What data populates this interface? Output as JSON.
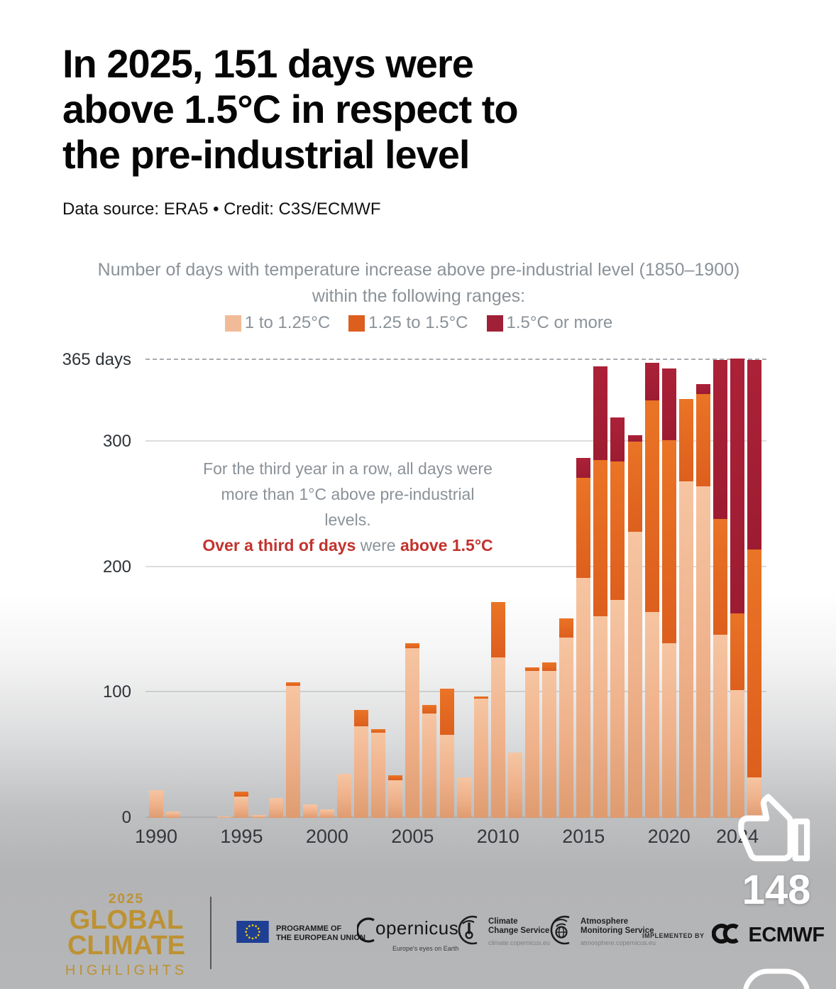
{
  "header": {
    "title_lines": [
      "In 2025, 151 days were",
      "above 1.5°C in respect to",
      "the pre-industrial level"
    ],
    "source": "Data source: ERA5 • Credit: C3S/ECMWF"
  },
  "chart": {
    "subtitle_line1": "Number of days with temperature increase above pre-industrial level (1850–1900)",
    "subtitle_line2": "within the following ranges:",
    "annotation": {
      "line1": "For the third year in a row, all days were",
      "line2": "more than 1°C above pre-industrial",
      "line3": "levels.",
      "line4_red1": "Over a third of days",
      "line4_gray": " were ",
      "line4_red2": "above 1.5°C"
    },
    "y_ticks": [
      {
        "label": "365 days",
        "value": 365
      },
      {
        "label": "300",
        "value": 300
      },
      {
        "label": "200",
        "value": 200
      },
      {
        "label": "100",
        "value": 100
      },
      {
        "label": "0",
        "value": 0
      }
    ],
    "x_ticks": [
      {
        "label": "1990",
        "year": 1990
      },
      {
        "label": "1995",
        "year": 1995
      },
      {
        "label": "2000",
        "year": 2000
      },
      {
        "label": "2005",
        "year": 2005
      },
      {
        "label": "2010",
        "year": 2010
      },
      {
        "label": "2015",
        "year": 2015
      },
      {
        "label": "2020",
        "year": 2020
      },
      {
        "label": "2024",
        "year": 2024
      }
    ]
  },
  "chart_data": {
    "type": "bar",
    "stacked": true,
    "title": "Number of days with temperature increase above pre-industrial level (1850–1900) within the following ranges",
    "xlabel": "Year",
    "ylabel": "Number of days",
    "ylim": [
      0,
      365
    ],
    "grid": "horizontal",
    "legend_position": "top",
    "categories": [
      1990,
      1991,
      1992,
      1993,
      1994,
      1995,
      1996,
      1997,
      1998,
      1999,
      2000,
      2001,
      2002,
      2003,
      2004,
      2005,
      2006,
      2007,
      2008,
      2009,
      2010,
      2011,
      2012,
      2013,
      2014,
      2015,
      2016,
      2017,
      2018,
      2019,
      2020,
      2021,
      2022,
      2023,
      2024,
      2025
    ],
    "series": [
      {
        "name": "1 to 1.25°C",
        "color": "#f2bb98",
        "values": [
          22,
          5,
          0,
          0,
          1,
          17,
          2,
          16,
          105,
          11,
          7,
          35,
          73,
          68,
          30,
          135,
          83,
          66,
          32,
          95,
          128,
          52,
          117,
          117,
          144,
          191,
          161,
          174,
          228,
          164,
          139,
          268,
          264,
          146,
          102,
          32
        ]
      },
      {
        "name": "1.25 to 1.5°C",
        "color": "#dd5f1d",
        "values": [
          0,
          0,
          0,
          0,
          0,
          4,
          0,
          0,
          3,
          0,
          0,
          0,
          13,
          3,
          4,
          4,
          7,
          37,
          0,
          2,
          44,
          0,
          3,
          7,
          15,
          80,
          124,
          110,
          72,
          169,
          162,
          66,
          74,
          92,
          61,
          182
        ]
      },
      {
        "name": "1.5°C or more",
        "color": "#a02037",
        "values": [
          0,
          0,
          0,
          0,
          0,
          0,
          0,
          0,
          0,
          0,
          0,
          0,
          0,
          0,
          0,
          0,
          0,
          0,
          0,
          0,
          0,
          0,
          0,
          0,
          0,
          16,
          75,
          35,
          5,
          30,
          57,
          0,
          8,
          127,
          203,
          151
        ]
      }
    ]
  },
  "overlay": {
    "like_count": "148"
  },
  "footer": {
    "year_badge": "2025",
    "brand_line1": "GLOBAL",
    "brand_line2": "CLIMATE",
    "brand_line3": "HIGHLIGHTS",
    "eu_label_line1": "PROGRAMME OF",
    "eu_label_line2": "THE EUROPEAN UNION",
    "copernicus_name": "opernicus",
    "copernicus_tagline": "Europe's eyes on Earth",
    "ccs_name_line1": "Climate",
    "ccs_name_line2": "Change Service",
    "ccs_url": "climate.copernicus.eu",
    "ams_name_line1": "Atmosphere",
    "ams_name_line2": "Monitoring Service",
    "ams_url": "atmosphere.copernicus.eu",
    "implemented_by": "IMPLEMENTED BY",
    "ecmwf": "ECMWF"
  },
  "colors": {
    "range_1_125": "#f2bb98",
    "range_125_15": "#dd5f1d",
    "range_15_plus": "#a02037",
    "annotation_red": "#c2322d",
    "brand_gold": "#bd9233",
    "text_gray": "#8b9298"
  }
}
